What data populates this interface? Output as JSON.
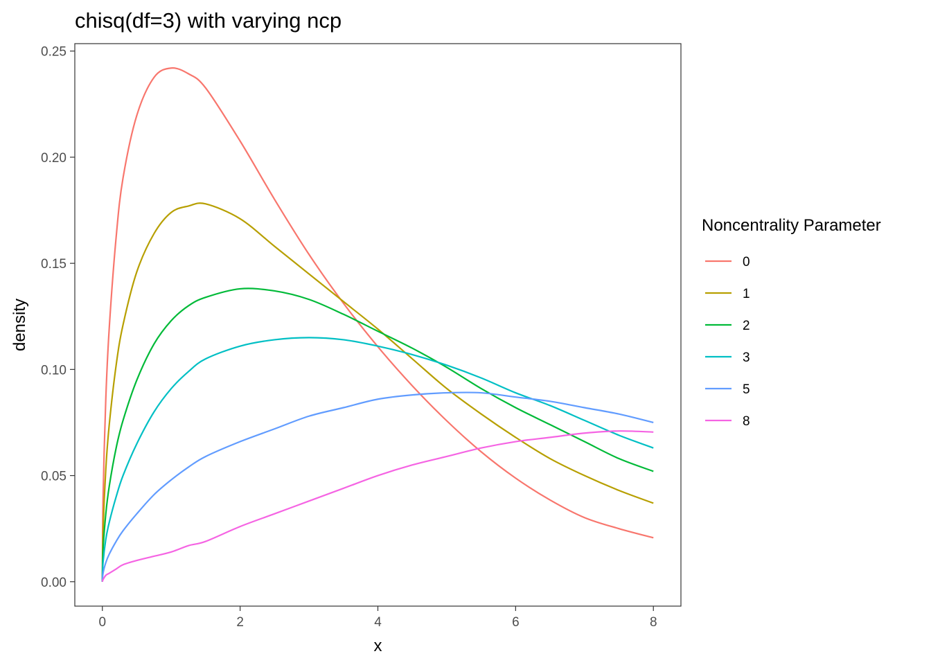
{
  "chart_data": {
    "type": "line",
    "title": "chisq(df=3) with varying ncp",
    "xlabel": "x",
    "ylabel": "density",
    "xlim": [
      -0.4,
      8.4
    ],
    "ylim": [
      -0.0115,
      0.2535
    ],
    "x_ticks": [
      0,
      2,
      4,
      6,
      8
    ],
    "x_tick_labels": [
      "0",
      "2",
      "4",
      "6",
      "8"
    ],
    "y_ticks": [
      0,
      0.05,
      0.1,
      0.15,
      0.2,
      0.25
    ],
    "y_tick_labels": [
      "0.00",
      "0.05",
      "0.10",
      "0.15",
      "0.20",
      "0.25"
    ],
    "grid": false,
    "legend": {
      "title": "Noncentrality Parameter",
      "position": "right"
    },
    "x": [
      0,
      0.01,
      0.05,
      0.1,
      0.2,
      0.3,
      0.5,
      0.75,
      1,
      1.25,
      1.5,
      2,
      2.5,
      3,
      3.5,
      4,
      4.5,
      5,
      5.5,
      6,
      6.5,
      7,
      7.5,
      8
    ],
    "series": [
      {
        "name": "0",
        "color": "#F8766D",
        "values": [
          0,
          0.0394,
          0.0862,
          0.1196,
          0.1623,
          0.1902,
          0.2197,
          0.2376,
          0.242,
          0.2393,
          0.2326,
          0.2076,
          0.1801,
          0.1542,
          0.1312,
          0.1107,
          0.0923,
          0.0758,
          0.0612,
          0.0488,
          0.0385,
          0.0302,
          0.025,
          0.0207
        ]
      },
      {
        "name": "1",
        "color": "#B79F00",
        "values": [
          0,
          0.024,
          0.053,
          0.074,
          0.102,
          0.121,
          0.146,
          0.164,
          0.174,
          0.177,
          0.178,
          0.171,
          0.158,
          0.145,
          0.132,
          0.119,
          0.105,
          0.091,
          0.079,
          0.068,
          0.058,
          0.05,
          0.043,
          0.037
        ]
      },
      {
        "name": "2",
        "color": "#00BA38",
        "values": [
          0,
          0.015,
          0.032,
          0.045,
          0.063,
          0.076,
          0.095,
          0.112,
          0.123,
          0.13,
          0.134,
          0.138,
          0.137,
          0.133,
          0.126,
          0.118,
          0.11,
          0.101,
          0.091,
          0.082,
          0.074,
          0.066,
          0.058,
          0.052
        ]
      },
      {
        "name": "3",
        "color": "#00BFC4",
        "values": [
          0,
          0.009,
          0.02,
          0.028,
          0.04,
          0.05,
          0.065,
          0.08,
          0.091,
          0.099,
          0.105,
          0.111,
          0.114,
          0.115,
          0.114,
          0.111,
          0.107,
          0.102,
          0.096,
          0.089,
          0.083,
          0.076,
          0.069,
          0.063
        ]
      },
      {
        "name": "5",
        "color": "#619CFF",
        "values": [
          0,
          0.004,
          0.009,
          0.013,
          0.019,
          0.024,
          0.032,
          0.041,
          0.048,
          0.054,
          0.059,
          0.066,
          0.072,
          0.078,
          0.082,
          0.086,
          0.088,
          0.089,
          0.089,
          0.087,
          0.085,
          0.082,
          0.079,
          0.075
        ]
      },
      {
        "name": "8",
        "color": "#F564E3",
        "values": [
          0,
          0.001,
          0.003,
          0.004,
          0.006,
          0.008,
          0.01,
          0.012,
          0.014,
          0.017,
          0.019,
          0.026,
          0.032,
          0.038,
          0.044,
          0.05,
          0.055,
          0.059,
          0.063,
          0.066,
          0.068,
          0.07,
          0.071,
          0.0705
        ]
      }
    ]
  }
}
